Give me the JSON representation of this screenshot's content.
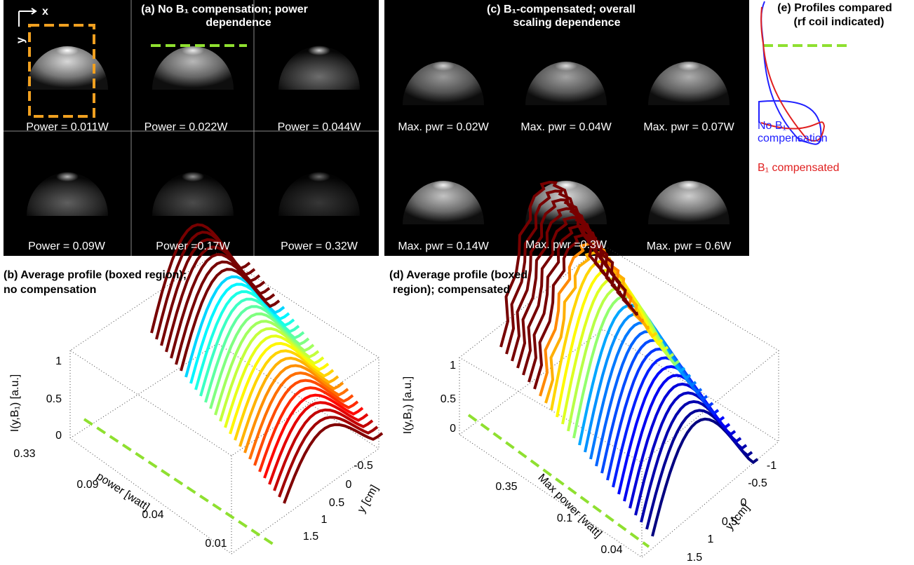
{
  "panel_a": {
    "title": [
      "(a) No B₁ compensation; power",
      "dependence"
    ],
    "axis_x": "x",
    "axis_y": "y",
    "captions": [
      "Power = 0.011W",
      "Power = 0.022W",
      "Power = 0.044W",
      "Power = 0.09W",
      "Power =0.17W",
      "Power = 0.32W"
    ]
  },
  "panel_c": {
    "title": [
      "(c) B₁-compensated; overall",
      "scaling dependence"
    ],
    "captions": [
      "Max. pwr = 0.02W",
      "Max. pwr = 0.04W",
      "Max. pwr = 0.07W",
      "Max. pwr = 0.14W",
      "Max. pwr =0.3W",
      "Max. pwr = 0.6W"
    ]
  },
  "panel_e": {
    "title": [
      "(e) Profiles compared",
      "(rf coil indicated)"
    ],
    "legend_blue": [
      "No B₁",
      "compensation"
    ],
    "legend_red": "B₁ compensated"
  },
  "panel_b": {
    "title": [
      "(b) Average profile (boxed region);",
      " no compensation"
    ],
    "z_label": "I(y,B₁) [a.u.]",
    "z_ticks": [
      "1",
      "0.5",
      "0"
    ],
    "power_ticks": [
      "0.33",
      "0.09",
      "0.04",
      "0.01"
    ],
    "power_label": "power [watt]",
    "y_ticks": [
      "-0.5",
      "0",
      "0.5",
      "1",
      "1.5"
    ],
    "y_label": "y [cm]"
  },
  "panel_d": {
    "title": [
      "(d) Average profile (boxed",
      "region); compensated"
    ],
    "z_label": "I(y,B₁) [a.u.]",
    "z_ticks": [
      "1",
      "0.5",
      "0"
    ],
    "power_ticks": [
      "0.35",
      "0.1",
      "0.04"
    ],
    "power_label": "Max power [watt]",
    "y_ticks": [
      "-1",
      "-0.5",
      "0",
      "0.5",
      "1",
      "1.5"
    ],
    "y_label": "y [cm]"
  }
}
